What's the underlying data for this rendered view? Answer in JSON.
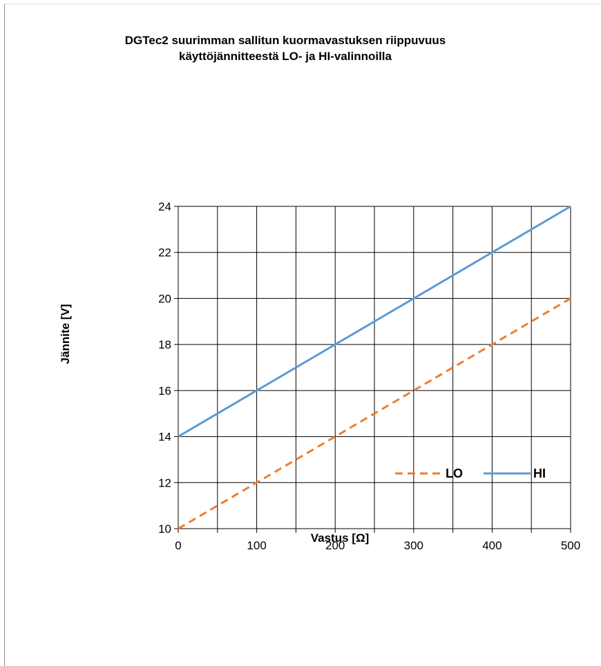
{
  "chart_data": {
    "type": "line",
    "title_lines": [
      "DGTec2 suurimman sallitun kuormavastuksen riippuvuus",
      "käyttöjännitteestä LO- ja HI-valinnoilla"
    ],
    "xlabel": "Vastus [Ω]",
    "ylabel": "Jännite [V]",
    "xlim": [
      0,
      500
    ],
    "ylim": [
      10,
      24
    ],
    "x_ticks": [
      "0",
      "100",
      "200",
      "300",
      "400",
      "500"
    ],
    "y_ticks": [
      "10",
      "12",
      "14",
      "16",
      "18",
      "20",
      "22",
      "24"
    ],
    "grid": true,
    "legend_position": "lower-right",
    "series": [
      {
        "name": "LO",
        "style": "dashed",
        "color": "#ED7D31",
        "x": [
          0,
          500
        ],
        "y": [
          10,
          20
        ]
      },
      {
        "name": "HI",
        "style": "solid",
        "color": "#5B9BD5",
        "x": [
          0,
          500
        ],
        "y": [
          14,
          24
        ]
      }
    ]
  }
}
